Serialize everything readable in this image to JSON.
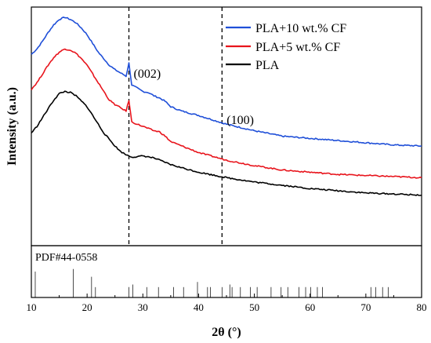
{
  "chart_data": {
    "type": "line",
    "xlabel": "2θ (°)",
    "ylabel": "Intensity (a.u.)",
    "xlim": [
      10,
      80
    ],
    "xticks": [
      "10",
      "20",
      "30",
      "40",
      "50",
      "60",
      "70",
      "80"
    ],
    "ylim": [
      0,
      1
    ],
    "y_ticks_labeled": false,
    "grid": false,
    "legend_position": "top-right",
    "series": [
      {
        "name": "PLA+10 wt.% CF",
        "color": "#1f4fd8",
        "x": [
          10,
          11,
          12,
          13,
          14,
          15,
          16,
          17,
          18,
          19,
          20,
          21,
          22,
          23,
          24,
          25,
          26,
          27,
          27.5,
          28,
          29,
          30,
          31,
          32,
          33,
          34,
          35,
          37,
          40,
          45,
          50,
          55,
          60,
          65,
          70,
          75,
          80
        ],
        "y": [
          0.83,
          0.855,
          0.89,
          0.93,
          0.965,
          0.99,
          1.0,
          0.99,
          0.975,
          0.95,
          0.92,
          0.88,
          0.84,
          0.81,
          0.78,
          0.76,
          0.745,
          0.73,
          0.79,
          0.69,
          0.675,
          0.66,
          0.655,
          0.64,
          0.63,
          0.615,
          0.59,
          0.57,
          0.55,
          0.51,
          0.48,
          0.455,
          0.445,
          0.435,
          0.425,
          0.415,
          0.41
        ]
      },
      {
        "name": "PLA+5 wt.% CF",
        "color": "#e8141c",
        "x": [
          10,
          11,
          12,
          13,
          14,
          15,
          16,
          17,
          18,
          19,
          20,
          21,
          22,
          23,
          24,
          25,
          26,
          27,
          27.5,
          28,
          29,
          30,
          31,
          32,
          33,
          34,
          35,
          37,
          40,
          45,
          50,
          55,
          60,
          65,
          70,
          75,
          80
        ],
        "y": [
          0.67,
          0.7,
          0.74,
          0.78,
          0.815,
          0.84,
          0.855,
          0.85,
          0.835,
          0.81,
          0.78,
          0.74,
          0.7,
          0.66,
          0.62,
          0.6,
          0.585,
          0.57,
          0.62,
          0.52,
          0.51,
          0.5,
          0.49,
          0.48,
          0.475,
          0.455,
          0.43,
          0.41,
          0.38,
          0.345,
          0.32,
          0.3,
          0.29,
          0.28,
          0.275,
          0.27,
          0.265
        ]
      },
      {
        "name": "PLA",
        "color": "#000000",
        "x": [
          10,
          11,
          12,
          13,
          14,
          15,
          16,
          17,
          18,
          19,
          20,
          21,
          22,
          23,
          24,
          25,
          26,
          27,
          28,
          29,
          30,
          31,
          32,
          33,
          34,
          35,
          37,
          40,
          45,
          50,
          55,
          60,
          65,
          70,
          75,
          80
        ],
        "y": [
          0.47,
          0.5,
          0.54,
          0.58,
          0.62,
          0.65,
          0.66,
          0.655,
          0.64,
          0.615,
          0.59,
          0.55,
          0.51,
          0.47,
          0.44,
          0.41,
          0.385,
          0.37,
          0.36,
          0.36,
          0.365,
          0.36,
          0.355,
          0.345,
          0.335,
          0.325,
          0.31,
          0.29,
          0.265,
          0.245,
          0.23,
          0.215,
          0.205,
          0.195,
          0.19,
          0.185
        ]
      }
    ],
    "annotations": [
      {
        "text": "(002)",
        "x": 27.5
      },
      {
        "text": "(100)",
        "x": 44.2
      }
    ],
    "reference_pattern": {
      "label": "PDF#44-0558",
      "peaks": [
        10.7,
        17.5,
        20.8,
        21.5,
        27.5,
        28.2,
        30.7,
        32.8,
        35.5,
        37.3,
        39.8,
        41.6,
        42.1,
        44.2,
        45.6,
        46.0,
        47.5,
        49.3,
        50.5,
        53.0,
        54.8,
        56.0,
        58.0,
        59.2,
        60.1,
        61.3,
        62.2,
        70.9,
        71.8,
        73.0,
        74.0
      ],
      "intensities": [
        0.5,
        0.55,
        0.4,
        0.2,
        0.2,
        0.25,
        0.2,
        0.2,
        0.2,
        0.2,
        0.3,
        0.2,
        0.2,
        0.2,
        0.25,
        0.2,
        0.2,
        0.2,
        0.2,
        0.2,
        0.2,
        0.2,
        0.2,
        0.2,
        0.2,
        0.2,
        0.2,
        0.2,
        0.2,
        0.2,
        0.2
      ]
    }
  }
}
